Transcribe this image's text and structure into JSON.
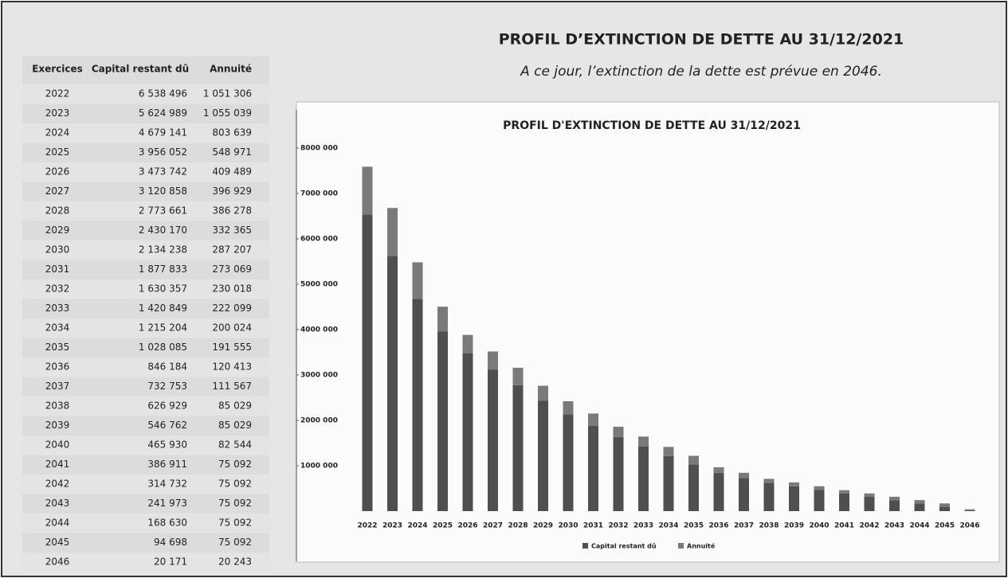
{
  "header": {
    "title": "PROFIL D’EXTINCTION DE DETTE AU 31/12/2021",
    "subtitle": "A ce jour, l’extinction de la dette est prévue en 2046."
  },
  "table": {
    "columns": [
      "Exercices",
      "Capital restant dû",
      "Annuité"
    ],
    "rows": [
      [
        "2022",
        "6 538 496",
        "1 051 306"
      ],
      [
        "2023",
        "5 624 989",
        "1 055 039"
      ],
      [
        "2024",
        "4 679 141",
        "803 639"
      ],
      [
        "2025",
        "3 956 052",
        "548 971"
      ],
      [
        "2026",
        "3 473 742",
        "409 489"
      ],
      [
        "2027",
        "3 120 858",
        "396 929"
      ],
      [
        "2028",
        "2 773 661",
        "386 278"
      ],
      [
        "2029",
        "2 430 170",
        "332 365"
      ],
      [
        "2030",
        "2 134 238",
        "287 207"
      ],
      [
        "2031",
        "1 877 833",
        "273 069"
      ],
      [
        "2032",
        "1 630 357",
        "230 018"
      ],
      [
        "2033",
        "1 420 849",
        "222 099"
      ],
      [
        "2034",
        "1 215 204",
        "200 024"
      ],
      [
        "2035",
        "1 028 085",
        "191 555"
      ],
      [
        "2036",
        "846 184",
        "120 413"
      ],
      [
        "2037",
        "732 753",
        "111 567"
      ],
      [
        "2038",
        "626 929",
        "85 029"
      ],
      [
        "2039",
        "546 762",
        "85 029"
      ],
      [
        "2040",
        "465 930",
        "82 544"
      ],
      [
        "2041",
        "386 911",
        "75 092"
      ],
      [
        "2042",
        "314 732",
        "75 092"
      ],
      [
        "2043",
        "241 973",
        "75 092"
      ],
      [
        "2044",
        "168 630",
        "75 092"
      ],
      [
        "2045",
        "94 698",
        "75 092"
      ],
      [
        "2046",
        "20 171",
        "20 243"
      ]
    ]
  },
  "chart_data": {
    "type": "stacked_bar",
    "title": "PROFIL D'EXTINCTION DE DETTE AU 31/12/2021",
    "categories": [
      "2022",
      "2023",
      "2024",
      "2025",
      "2026",
      "2027",
      "2028",
      "2029",
      "2030",
      "2031",
      "2032",
      "2033",
      "2034",
      "2035",
      "2036",
      "2037",
      "2038",
      "2039",
      "2040",
      "2041",
      "2042",
      "2043",
      "2044",
      "2045",
      "2046"
    ],
    "series": [
      {
        "name": "Capital restant dû",
        "color": "#4f4f4f",
        "values": [
          6538496,
          5624989,
          4679141,
          3956052,
          3473742,
          3120858,
          2773661,
          2430170,
          2134238,
          1877833,
          1630357,
          1420849,
          1215204,
          1028085,
          846184,
          732753,
          626929,
          546762,
          465930,
          386911,
          314732,
          241973,
          168630,
          94698,
          20171
        ]
      },
      {
        "name": "Annuité",
        "color": "#7a7a7a",
        "values": [
          1051306,
          1055039,
          803639,
          548971,
          409489,
          396929,
          386278,
          332365,
          287207,
          273069,
          230018,
          222099,
          200024,
          191555,
          120413,
          111567,
          85029,
          85029,
          82544,
          75092,
          75092,
          75092,
          75092,
          75092,
          20243
        ]
      }
    ],
    "ylim": [
      0,
      8000000
    ],
    "yticks": [
      {
        "value": 1000000,
        "label": "1000 000"
      },
      {
        "value": 2000000,
        "label": "2000 000"
      },
      {
        "value": 3000000,
        "label": "3000 000"
      },
      {
        "value": 4000000,
        "label": "4000 000"
      },
      {
        "value": 5000000,
        "label": "5000 000"
      },
      {
        "value": 6000000,
        "label": "6000 000"
      },
      {
        "value": 7000000,
        "label": "7000 000"
      },
      {
        "value": 8000000,
        "label": "8000 000"
      }
    ],
    "legend": "bottom"
  }
}
